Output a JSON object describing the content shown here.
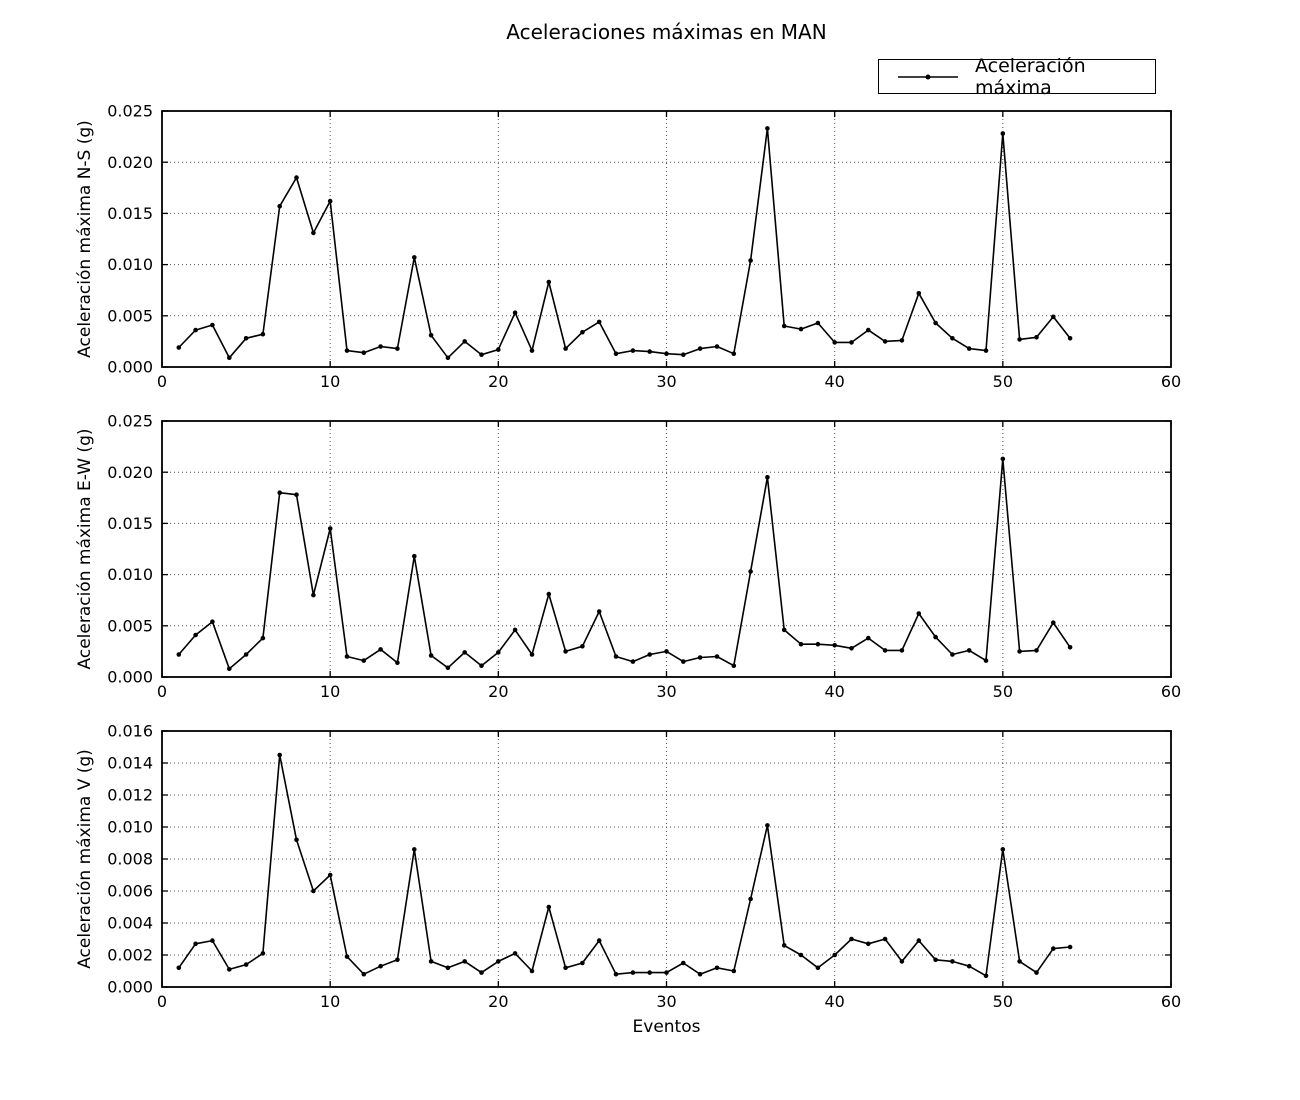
{
  "title": "Aceleraciones máximas en MAN",
  "legend": {
    "label": "Aceleración máxima"
  },
  "xlabel": "Eventos",
  "colors": {
    "line": "#000000",
    "marker": "#000000",
    "grid": "#555555",
    "background": "#ffffff",
    "frame": "#000000"
  },
  "chart_data": [
    {
      "type": "line",
      "id": "ns",
      "title": "",
      "ylabel": "Aceleración máxima N-S (g)",
      "xlabel": "",
      "legend_entry": "Aceleración máxima",
      "legend_position": "upper right, above axes",
      "grid": true,
      "xlim": [
        0,
        60
      ],
      "ylim": [
        0,
        0.025
      ],
      "xticks": [
        0,
        10,
        20,
        30,
        40,
        50,
        60
      ],
      "yticks": [
        0.0,
        0.005,
        0.01,
        0.015,
        0.02,
        0.025
      ],
      "x": [
        1,
        2,
        3,
        4,
        5,
        6,
        7,
        8,
        9,
        10,
        11,
        12,
        13,
        14,
        15,
        16,
        17,
        18,
        19,
        20,
        21,
        22,
        23,
        24,
        25,
        26,
        27,
        28,
        29,
        30,
        31,
        32,
        33,
        34,
        35,
        36,
        37,
        38,
        39,
        40,
        41,
        42,
        43,
        44,
        45,
        46,
        47,
        48,
        49,
        50,
        51,
        52,
        53,
        54
      ],
      "values": [
        0.0019,
        0.0036,
        0.0041,
        0.0009,
        0.0028,
        0.0032,
        0.0157,
        0.0185,
        0.0131,
        0.0162,
        0.0016,
        0.0014,
        0.002,
        0.0018,
        0.0107,
        0.0031,
        0.0009,
        0.0025,
        0.0012,
        0.0017,
        0.0053,
        0.0016,
        0.0083,
        0.0018,
        0.0034,
        0.0044,
        0.0013,
        0.0016,
        0.0015,
        0.0013,
        0.0012,
        0.0018,
        0.002,
        0.0013,
        0.0104,
        0.0233,
        0.004,
        0.0037,
        0.0043,
        0.0024,
        0.0024,
        0.0036,
        0.0025,
        0.0026,
        0.0072,
        0.0043,
        0.0028,
        0.0018,
        0.0016,
        0.0228,
        0.0027,
        0.0029,
        0.0049,
        0.0028
      ]
    },
    {
      "type": "line",
      "id": "ew",
      "title": "",
      "ylabel": "Aceleración máxima E-W (g)",
      "xlabel": "",
      "legend_entry": "Aceleración máxima",
      "grid": true,
      "xlim": [
        0,
        60
      ],
      "ylim": [
        0,
        0.025
      ],
      "xticks": [
        0,
        10,
        20,
        30,
        40,
        50,
        60
      ],
      "yticks": [
        0.0,
        0.005,
        0.01,
        0.015,
        0.02,
        0.025
      ],
      "x": [
        1,
        2,
        3,
        4,
        5,
        6,
        7,
        8,
        9,
        10,
        11,
        12,
        13,
        14,
        15,
        16,
        17,
        18,
        19,
        20,
        21,
        22,
        23,
        24,
        25,
        26,
        27,
        28,
        29,
        30,
        31,
        32,
        33,
        34,
        35,
        36,
        37,
        38,
        39,
        40,
        41,
        42,
        43,
        44,
        45,
        46,
        47,
        48,
        49,
        50,
        51,
        52,
        53,
        54
      ],
      "values": [
        0.0022,
        0.0041,
        0.0054,
        0.0008,
        0.0022,
        0.0038,
        0.018,
        0.0178,
        0.008,
        0.0145,
        0.002,
        0.0016,
        0.0027,
        0.0014,
        0.0118,
        0.0021,
        0.0009,
        0.0024,
        0.0011,
        0.0024,
        0.0046,
        0.0022,
        0.0081,
        0.0025,
        0.003,
        0.0064,
        0.002,
        0.0015,
        0.0022,
        0.0025,
        0.0015,
        0.0019,
        0.002,
        0.0011,
        0.0103,
        0.0195,
        0.0046,
        0.0032,
        0.0032,
        0.0031,
        0.0028,
        0.0038,
        0.0026,
        0.0026,
        0.0062,
        0.0039,
        0.0022,
        0.0026,
        0.0016,
        0.0213,
        0.0025,
        0.0026,
        0.0053,
        0.0029
      ]
    },
    {
      "type": "line",
      "id": "v",
      "title": "",
      "ylabel": "Aceleración máxima V (g)",
      "xlabel": "Eventos",
      "legend_entry": "Aceleración máxima",
      "grid": true,
      "xlim": [
        0,
        60
      ],
      "ylim": [
        0,
        0.016
      ],
      "xticks": [
        0,
        10,
        20,
        30,
        40,
        50,
        60
      ],
      "yticks": [
        0.0,
        0.002,
        0.004,
        0.006,
        0.008,
        0.01,
        0.012,
        0.014,
        0.016
      ],
      "x": [
        1,
        2,
        3,
        4,
        5,
        6,
        7,
        8,
        9,
        10,
        11,
        12,
        13,
        14,
        15,
        16,
        17,
        18,
        19,
        20,
        21,
        22,
        23,
        24,
        25,
        26,
        27,
        28,
        29,
        30,
        31,
        32,
        33,
        34,
        35,
        36,
        37,
        38,
        39,
        40,
        41,
        42,
        43,
        44,
        45,
        46,
        47,
        48,
        49,
        50,
        51,
        52,
        53,
        54
      ],
      "values": [
        0.0012,
        0.0027,
        0.0029,
        0.0011,
        0.0014,
        0.0021,
        0.0145,
        0.0092,
        0.006,
        0.007,
        0.0019,
        0.0008,
        0.0013,
        0.0017,
        0.0086,
        0.0016,
        0.0012,
        0.0016,
        0.0009,
        0.0016,
        0.0021,
        0.001,
        0.005,
        0.0012,
        0.0015,
        0.0029,
        0.0008,
        0.0009,
        0.0009,
        0.0009,
        0.0015,
        0.0008,
        0.0012,
        0.001,
        0.0055,
        0.0101,
        0.0026,
        0.002,
        0.0012,
        0.002,
        0.003,
        0.0027,
        0.003,
        0.0016,
        0.0029,
        0.0017,
        0.0016,
        0.0013,
        0.0007,
        0.0086,
        0.0016,
        0.0009,
        0.0024,
        0.0025
      ]
    }
  ]
}
